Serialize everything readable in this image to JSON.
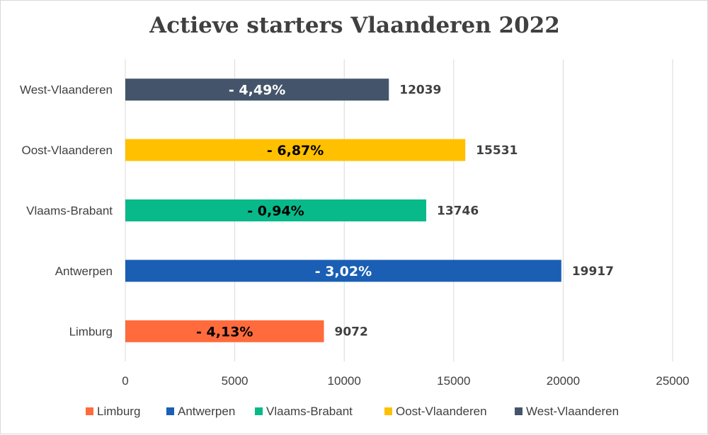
{
  "chart_data": {
    "type": "bar",
    "orientation": "horizontal",
    "title": "Actieve starters Vlaanderen 2022",
    "xlabel": "",
    "ylabel": "",
    "xlim": [
      0,
      25000
    ],
    "x_ticks": [
      "0",
      "5000",
      "10000",
      "15000",
      "20000",
      "25000"
    ],
    "grid": "vertical",
    "legend_position": "bottom",
    "categories": [
      "Limburg",
      "Antwerpen",
      "Vlaams-Brabant",
      "Oost-Vlaanderen",
      "West-Vlaanderen"
    ],
    "values": [
      9072,
      19917,
      13746,
      15531,
      12039
    ],
    "value_labels": [
      "9072",
      "19917",
      "13746",
      "15531",
      "12039"
    ],
    "change_labels": [
      "- 4,13%",
      "- 3,02%",
      "- 0,94%",
      "- 6,87%",
      "- 4,49%"
    ],
    "colors": [
      "#ff6b3d",
      "#1a5fb4",
      "#08b98a",
      "#ffc000",
      "#44546a"
    ],
    "change_label_colors": [
      "#000000",
      "#ffffff",
      "#000000",
      "#000000",
      "#ffffff"
    ],
    "legend": [
      "Limburg",
      "Antwerpen",
      "Vlaams-Brabant",
      "Oost-Vlaanderen",
      "West-Vlaanderen"
    ]
  }
}
